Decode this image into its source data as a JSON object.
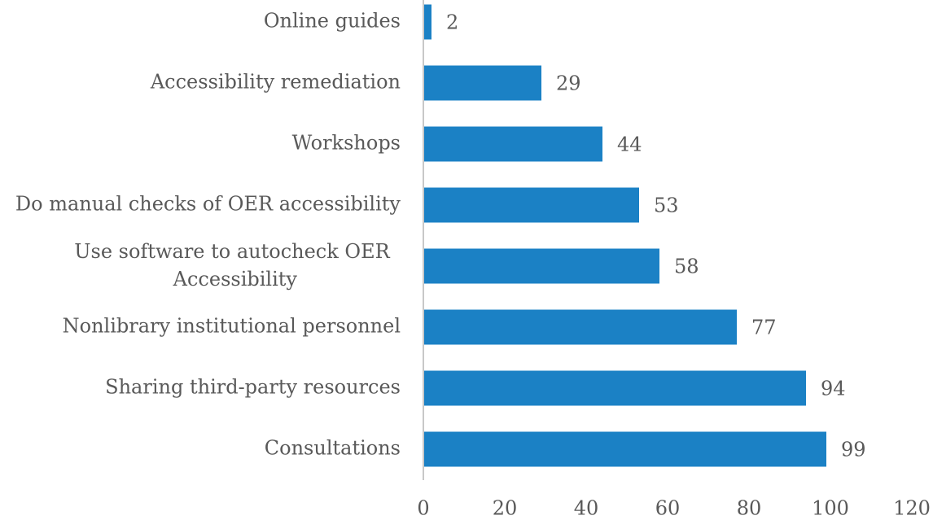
{
  "chart_data": {
    "type": "hbar",
    "categories": [
      "Online guides",
      "Accessibility remediation",
      "Workshops",
      "Do manual checks of OER accessibility",
      "Use software to autocheck OER Accessibility",
      "Nonlibrary institutional personnel",
      "Sharing third-party resources",
      "Consultations"
    ],
    "values": [
      2,
      29,
      44,
      53,
      58,
      77,
      94,
      99
    ],
    "color": "#1b81c5",
    "xlim": [
      0,
      120
    ],
    "xticks": [
      0,
      20,
      40,
      60,
      80,
      100,
      120
    ],
    "grid": false
  }
}
